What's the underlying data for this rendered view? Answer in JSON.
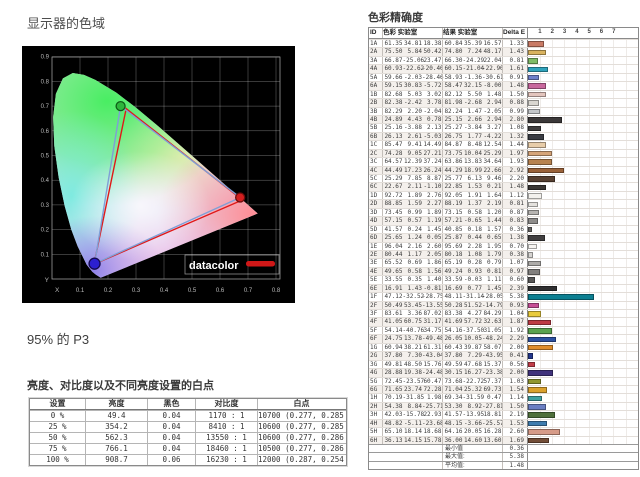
{
  "left": {
    "gamut_title": "显示器的色域",
    "gamut_result": "95% 的 P3",
    "chart": {
      "logo": "datacolor",
      "x_axis_label": "X",
      "y_axis_label": "Y",
      "x_ticks": [
        "0.1",
        "0.2",
        "0.3",
        "0.4",
        "0.5",
        "0.6",
        "0.7",
        "0.8"
      ],
      "y_ticks": [
        "0.1",
        "0.2",
        "0.3",
        "0.4",
        "0.5",
        "0.6",
        "0.7",
        "0.8",
        "0.9"
      ],
      "reference_triangle": [
        [
          0.265,
          0.69
        ],
        [
          0.68,
          0.32
        ],
        [
          0.15,
          0.06
        ]
      ],
      "display_triangle": [
        [
          0.245,
          0.7
        ],
        [
          0.672,
          0.33
        ],
        [
          0.152,
          0.062
        ]
      ],
      "reference_color": "#e01818",
      "display_color": "#7f9fd6",
      "dot_colors": {
        "green": "#2eb53c",
        "red": "#d31f1f",
        "blue": "#2c1fd1"
      }
    },
    "luminance_title": "亮度、对比度以及不同亮度设置的白点",
    "luminance_table": {
      "headers": [
        "设置",
        "亮度",
        "黑色",
        "对比度",
        "白点"
      ],
      "rows": [
        [
          "0 %",
          "49.4",
          "0.04",
          "1170 : 1",
          "10700 (0.277, 0.285)"
        ],
        [
          "25 %",
          "354.2",
          "0.04",
          "8410 : 1",
          "10600 (0.277, 0.285)"
        ],
        [
          "50 %",
          "562.3",
          "0.04",
          "13550 : 1",
          "10600 (0.277, 0.286)"
        ],
        [
          "75 %",
          "766.1",
          "0.04",
          "18460 : 1",
          "10500 (0.277, 0.286)"
        ],
        [
          "100 %",
          "908.7",
          "0.06",
          "16230 : 1",
          "12000 (0.287, 0.254)"
        ]
      ]
    }
  },
  "right": {
    "accuracy_title": "色彩精确度",
    "accuracy_table": {
      "headers": {
        "id": "ID",
        "target": "色彩 实验室",
        "result": "结果 实验室",
        "delta": "Delta E"
      },
      "scale_ticks": [
        "1",
        "2",
        "3",
        "4",
        "5",
        "6",
        "7"
      ],
      "rows": [
        {
          "id": "1A",
          "t": [
            "61.35",
            "34.81",
            "18.38"
          ],
          "r": [
            "60.84",
            "35.39",
            "16.57"
          ],
          "d": "1.33",
          "c": "#C97B66"
        },
        {
          "id": "2A",
          "t": [
            "75.50",
            "5.84",
            "50.42"
          ],
          "r": [
            "74.80",
            "7.24",
            "48.17"
          ],
          "d": "1.43",
          "c": "#D9B35F"
        },
        {
          "id": "3A",
          "t": [
            "66.87",
            "-25.06",
            "23.47"
          ],
          "r": [
            "66.30",
            "-24.29",
            "22.04"
          ],
          "d": "0.81",
          "c": "#7FBB66"
        },
        {
          "id": "4A",
          "t": [
            "60.93",
            "-22.62",
            "-20.40"
          ],
          "r": [
            "60.15",
            "-21.04",
            "-22.90"
          ],
          "d": "1.61",
          "c": "#2FA3BC"
        },
        {
          "id": "5A",
          "t": [
            "59.66",
            "-2.03",
            "-28.46"
          ],
          "r": [
            "58.93",
            "-1.36",
            "-30.61"
          ],
          "d": "0.91",
          "c": "#6F80CB"
        },
        {
          "id": "6A",
          "t": [
            "59.15",
            "30.83",
            "-5.72"
          ],
          "r": [
            "58.47",
            "32.15",
            "-8.00"
          ],
          "d": "1.48",
          "c": "#C8689D"
        },
        {
          "id": "1B",
          "t": [
            "82.68",
            "5.03",
            "3.02"
          ],
          "r": [
            "82.12",
            "5.50",
            "1.48"
          ],
          "d": "1.50",
          "c": "#E3C5BD"
        },
        {
          "id": "2B",
          "t": [
            "82.38",
            "-2.42",
            "3.78"
          ],
          "r": [
            "81.98",
            "-2.68",
            "2.94"
          ],
          "d": "0.88",
          "c": "#D9D6D0"
        },
        {
          "id": "3B",
          "t": [
            "82.29",
            "2.20",
            "-2.04"
          ],
          "r": [
            "82.24",
            "1.47",
            "-2.05"
          ],
          "d": "0.99",
          "c": "#C3C6C9"
        },
        {
          "id": "4B",
          "t": [
            "24.89",
            "4.43",
            "0.78"
          ],
          "r": [
            "25.15",
            "2.66",
            "2.94"
          ],
          "d": "2.80",
          "c": "#3B3838"
        },
        {
          "id": "5B",
          "t": [
            "25.16",
            "-3.88",
            "2.13"
          ],
          "r": [
            "25.27",
            "-3.84",
            "3.27"
          ],
          "d": "1.08",
          "c": "#403E3E"
        },
        {
          "id": "6B",
          "t": [
            "26.13",
            "2.61",
            "-5.03"
          ],
          "r": [
            "26.75",
            "1.77",
            "-4.22"
          ],
          "d": "1.32",
          "c": "#3A3C43"
        },
        {
          "id": "1C",
          "t": [
            "85.47",
            "9.41",
            "14.49"
          ],
          "r": [
            "84.87",
            "8.48",
            "12.54"
          ],
          "d": "1.44",
          "c": "#E8CDA9"
        },
        {
          "id": "2C",
          "t": [
            "74.28",
            "9.05",
            "27.21"
          ],
          "r": [
            "73.75",
            "10.04",
            "25.29"
          ],
          "d": "1.97",
          "c": "#D5A478"
        },
        {
          "id": "3C",
          "t": [
            "64.57",
            "12.39",
            "37.24"
          ],
          "r": [
            "63.86",
            "13.83",
            "34.64"
          ],
          "d": "1.93",
          "c": "#B7824F"
        },
        {
          "id": "4C",
          "t": [
            "44.49",
            "17.23",
            "26.24"
          ],
          "r": [
            "44.29",
            "18.99",
            "22.66"
          ],
          "d": "2.92",
          "c": "#9A6239"
        },
        {
          "id": "5C",
          "t": [
            "25.29",
            "7.85",
            "8.87"
          ],
          "r": [
            "25.77",
            "6.13",
            "9.46"
          ],
          "d": "2.20",
          "c": "#564032"
        },
        {
          "id": "6C",
          "t": [
            "22.67",
            "2.11",
            "-1.10"
          ],
          "r": [
            "22.85",
            "1.53",
            "0.21"
          ],
          "d": "1.48",
          "c": "#3B3734"
        },
        {
          "id": "1D",
          "t": [
            "92.72",
            "1.89",
            "2.76"
          ],
          "r": [
            "92.05",
            "1.91",
            "1.64"
          ],
          "d": "1.12",
          "c": "#F3F1ED"
        },
        {
          "id": "2D",
          "t": [
            "88.85",
            "1.59",
            "2.27"
          ],
          "r": [
            "88.19",
            "1.37",
            "2.19"
          ],
          "d": "0.81",
          "c": "#E4E2DE"
        },
        {
          "id": "3D",
          "t": [
            "73.45",
            "0.99",
            "1.89"
          ],
          "r": [
            "73.15",
            "0.58",
            "1.20"
          ],
          "d": "0.87",
          "c": "#B7B5B2"
        },
        {
          "id": "4D",
          "t": [
            "57.15",
            "0.57",
            "1.19"
          ],
          "r": [
            "57.21",
            "-0.65",
            "1.44"
          ],
          "d": "0.83",
          "c": "#8E8C8A"
        },
        {
          "id": "5D",
          "t": [
            "41.57",
            "0.24",
            "1.45"
          ],
          "r": [
            "40.85",
            "0.18",
            "1.57"
          ],
          "d": "0.36",
          "c": "#656362"
        },
        {
          "id": "6D",
          "t": [
            "25.65",
            "1.24",
            "0.05"
          ],
          "r": [
            "25.87",
            "0.44",
            "0.65"
          ],
          "d": "1.38",
          "c": "#413F40"
        },
        {
          "id": "1E",
          "t": [
            "96.04",
            "2.16",
            "2.60"
          ],
          "r": [
            "95.69",
            "2.28",
            "1.95"
          ],
          "d": "0.70",
          "c": "#F6F4F1"
        },
        {
          "id": "2E",
          "t": [
            "80.44",
            "1.17",
            "2.05"
          ],
          "r": [
            "80.18",
            "1.08",
            "1.79"
          ],
          "d": "0.38",
          "c": "#D6D4D1"
        },
        {
          "id": "3E",
          "t": [
            "65.52",
            "0.69",
            "1.86"
          ],
          "r": [
            "65.19",
            "0.28",
            "0.79"
          ],
          "d": "1.07",
          "c": "#ADABA8"
        },
        {
          "id": "4E",
          "t": [
            "49.65",
            "0.58",
            "1.56"
          ],
          "r": [
            "49.24",
            "0.93",
            "0.81"
          ],
          "d": "0.97",
          "c": "#82807E"
        },
        {
          "id": "5E",
          "t": [
            "33.55",
            "0.35",
            "1.40"
          ],
          "r": [
            "33.59",
            "-0.03",
            "1.11"
          ],
          "d": "0.60",
          "c": "#585756"
        },
        {
          "id": "6E",
          "t": [
            "16.91",
            "1.43",
            "-0.81"
          ],
          "r": [
            "16.69",
            "0.77",
            "1.45"
          ],
          "d": "2.39",
          "c": "#2F2F30"
        },
        {
          "id": "1F",
          "t": [
            "47.12",
            "-32.52",
            "-28.75"
          ],
          "r": [
            "48.11",
            "-31.14",
            "-28.05"
          ],
          "d": "5.38",
          "c": "#0C7F91"
        },
        {
          "id": "2F",
          "t": [
            "50.49",
            "53.45",
            "-13.55"
          ],
          "r": [
            "50.28",
            "51.52",
            "-14.79"
          ],
          "d": "0.93",
          "c": "#C75097"
        },
        {
          "id": "3F",
          "t": [
            "83.61",
            "3.36",
            "87.02"
          ],
          "r": [
            "83.38",
            "4.27",
            "84.29"
          ],
          "d": "1.04",
          "c": "#E9CB3D"
        },
        {
          "id": "4F",
          "t": [
            "41.05",
            "60.75",
            "31.17"
          ],
          "r": [
            "41.69",
            "57.72",
            "32.63"
          ],
          "d": "1.87",
          "c": "#BE3A43"
        },
        {
          "id": "5F",
          "t": [
            "54.14",
            "-40.76",
            "34.75"
          ],
          "r": [
            "54.16",
            "-37.50",
            "31.05"
          ],
          "d": "1.92",
          "c": "#5AA24F"
        },
        {
          "id": "6F",
          "t": [
            "24.75",
            "13.78",
            "-49.48"
          ],
          "r": [
            "26.05",
            "10.05",
            "-48.24"
          ],
          "d": "2.29",
          "c": "#2C51A2"
        },
        {
          "id": "1G",
          "t": [
            "60.94",
            "38.21",
            "61.31"
          ],
          "r": [
            "60.43",
            "39.87",
            "58.07"
          ],
          "d": "2.00",
          "c": "#E08E2C"
        },
        {
          "id": "2G",
          "t": [
            "37.80",
            "7.30",
            "-43.04"
          ],
          "r": [
            "37.80",
            "7.29",
            "-43.95"
          ],
          "d": "0.41",
          "c": "#23378D"
        },
        {
          "id": "3G",
          "t": [
            "49.81",
            "48.50",
            "15.76"
          ],
          "r": [
            "49.59",
            "47.68",
            "15.37"
          ],
          "d": "0.56",
          "c": "#C23E49"
        },
        {
          "id": "4G",
          "t": [
            "28.88",
            "19.38",
            "-24.48"
          ],
          "r": [
            "30.15",
            "16.27",
            "-23.38"
          ],
          "d": "2.00",
          "c": "#40327B"
        },
        {
          "id": "5G",
          "t": [
            "72.45",
            "-23.57",
            "60.47"
          ],
          "r": [
            "73.68",
            "-22.72",
            "57.37"
          ],
          "d": "1.03",
          "c": "#909731"
        },
        {
          "id": "6G",
          "t": [
            "71.65",
            "23.74",
            "72.28"
          ],
          "r": [
            "71.04",
            "25.32",
            "69.73"
          ],
          "d": "1.54",
          "c": "#DAA12D"
        },
        {
          "id": "1H",
          "t": [
            "70.19",
            "-31.85",
            "1.98"
          ],
          "r": [
            "69.34",
            "-31.59",
            "0.47"
          ],
          "d": "1.14",
          "c": "#3FA0A1"
        },
        {
          "id": "2H",
          "t": [
            "54.38",
            "8.84",
            "-25.71"
          ],
          "r": [
            "53.30",
            "8.92",
            "-27.81"
          ],
          "d": "1.50",
          "c": "#6A7EC2"
        },
        {
          "id": "3H",
          "t": [
            "42.03",
            "-15.78",
            "22.93"
          ],
          "r": [
            "41.57",
            "-13.95",
            "18.81"
          ],
          "d": "2.19",
          "c": "#4F703B"
        },
        {
          "id": "4H",
          "t": [
            "48.82",
            "-5.11",
            "-23.68"
          ],
          "r": [
            "48.15",
            "-3.66",
            "-25.57"
          ],
          "d": "1.53",
          "c": "#3E7CAE"
        },
        {
          "id": "5H",
          "t": [
            "65.10",
            "18.14",
            "18.68"
          ],
          "r": [
            "64.16",
            "20.05",
            "16.28"
          ],
          "d": "2.60",
          "c": "#D69B88"
        },
        {
          "id": "6H",
          "t": [
            "36.13",
            "14.15",
            "15.78"
          ],
          "r": [
            "36.00",
            "14.60",
            "13.60"
          ],
          "d": "1.69",
          "c": "#734E38"
        }
      ],
      "summary": [
        {
          "label": "最小值",
          "value": "0.36"
        },
        {
          "label": "最大值:",
          "value": "5.38"
        },
        {
          "label": "平均值:",
          "value": "1.48"
        }
      ]
    }
  }
}
